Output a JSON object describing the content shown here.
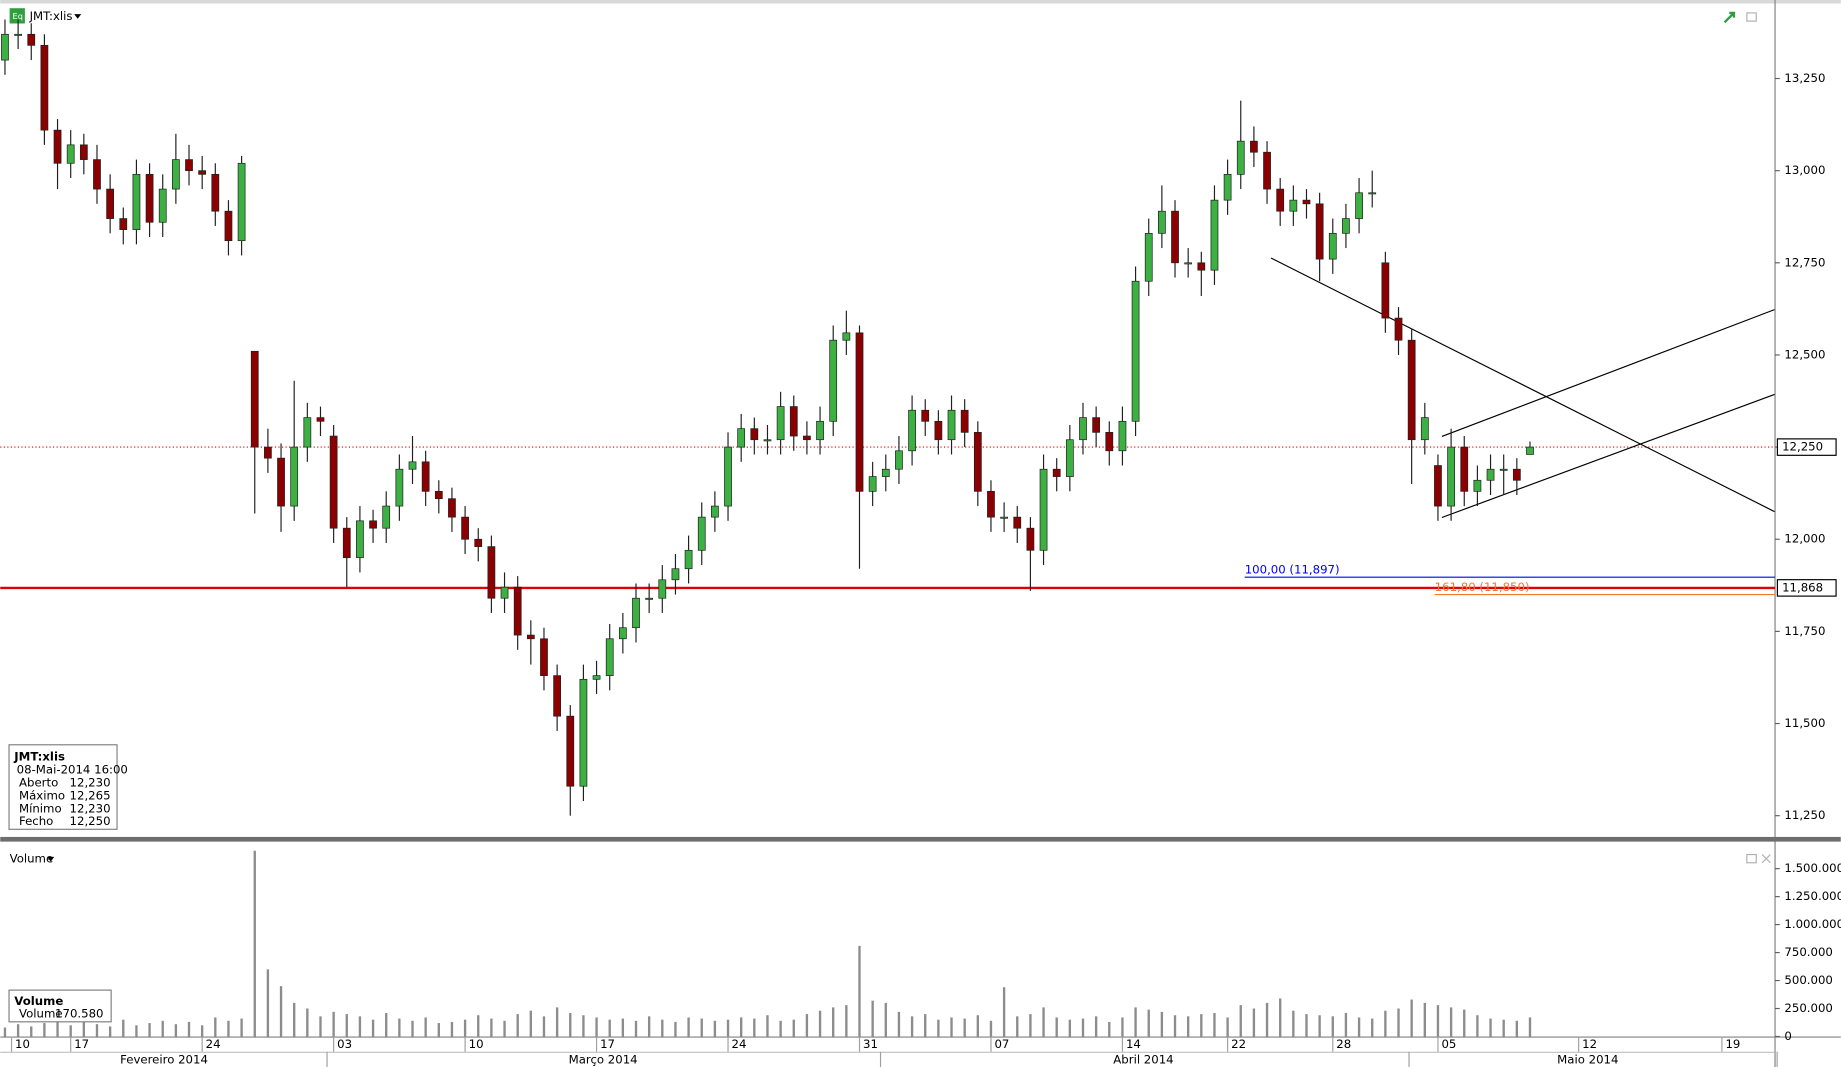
{
  "chart_data": [
    {
      "type": "candlestick",
      "title": "JMT:xlis",
      "x": [
        -5,
        -4,
        -3,
        -2,
        -1,
        0,
        1,
        2,
        3,
        4,
        5,
        6,
        7,
        8,
        9,
        10,
        11,
        12,
        13,
        14,
        15,
        16,
        17,
        18,
        19,
        20,
        21,
        22,
        23,
        24,
        25,
        26,
        27,
        28,
        29,
        30,
        31,
        32,
        33,
        34,
        35,
        36,
        37,
        38,
        39,
        40,
        41,
        42,
        43,
        44,
        45,
        46,
        47,
        48,
        49,
        50,
        51,
        52,
        53,
        54,
        55,
        56,
        57,
        58,
        59,
        60,
        61,
        62,
        63,
        64,
        65,
        66,
        67,
        68,
        69,
        70,
        71,
        72,
        73,
        74,
        75,
        76,
        77,
        78,
        79,
        80,
        81,
        82,
        83,
        84,
        85,
        86,
        87,
        88,
        89,
        90,
        91,
        92,
        93,
        94,
        95,
        96,
        97,
        98,
        99,
        100,
        101,
        102,
        103,
        104,
        105,
        106,
        107,
        108,
        109,
        110,
        111
      ],
      "open": [
        13.3,
        13.37,
        13.37,
        13.34,
        13.11,
        13.02,
        13.07,
        13.03,
        12.95,
        12.87,
        12.84,
        12.99,
        12.86,
        12.95,
        13.03,
        13.0,
        12.99,
        12.89,
        12.81,
        12.51,
        12.25,
        12.22,
        12.09,
        12.25,
        12.33,
        12.28,
        12.03,
        11.95,
        12.05,
        12.03,
        12.09,
        12.19,
        12.21,
        12.13,
        12.11,
        12.06,
        12.0,
        11.98,
        11.84,
        11.87,
        11.74,
        11.73,
        11.63,
        11.52,
        11.33,
        11.62,
        11.63,
        11.73,
        11.76,
        11.84,
        11.84,
        11.89,
        11.92,
        11.97,
        12.06,
        12.09,
        12.25,
        12.3,
        12.27,
        12.27,
        12.36,
        12.28,
        12.27,
        12.32,
        12.54,
        12.56,
        12.13,
        12.17,
        12.19,
        12.24,
        12.35,
        12.32,
        12.27,
        12.35,
        12.29,
        12.13,
        12.06,
        12.06,
        12.03,
        11.97,
        12.19,
        12.17,
        12.27,
        12.33,
        12.29,
        12.24,
        12.32,
        12.7,
        12.83,
        12.89,
        12.75,
        12.75,
        12.73,
        12.92,
        12.99,
        13.08,
        13.05,
        12.95,
        12.89,
        12.92,
        12.91,
        12.76,
        12.83,
        12.87,
        12.94,
        12.75,
        12.6,
        12.54,
        12.27,
        12.2,
        12.09,
        12.25,
        12.13,
        12.16,
        12.19,
        12.19,
        12.23
      ],
      "high": [
        13.41,
        13.41,
        13.4,
        13.37,
        13.14,
        13.11,
        13.1,
        13.07,
        12.99,
        12.9,
        13.03,
        13.02,
        12.99,
        13.1,
        13.07,
        13.04,
        13.02,
        12.92,
        13.04,
        12.51,
        12.3,
        12.26,
        12.43,
        12.37,
        12.36,
        12.31,
        12.06,
        12.09,
        12.08,
        12.13,
        12.23,
        12.28,
        12.24,
        12.16,
        12.14,
        12.09,
        12.03,
        12.01,
        11.91,
        11.9,
        11.78,
        11.76,
        11.66,
        11.55,
        11.66,
        11.67,
        11.77,
        11.8,
        11.88,
        11.88,
        11.93,
        11.96,
        12.01,
        12.1,
        12.13,
        12.29,
        12.34,
        12.33,
        12.31,
        12.4,
        12.39,
        12.32,
        12.36,
        12.58,
        12.62,
        12.58,
        12.21,
        12.23,
        12.28,
        12.39,
        12.38,
        12.35,
        12.39,
        12.38,
        12.32,
        12.16,
        12.1,
        12.09,
        12.06,
        12.23,
        12.22,
        12.31,
        12.37,
        12.36,
        12.32,
        12.36,
        12.74,
        12.87,
        12.96,
        12.92,
        12.79,
        12.78,
        12.96,
        13.03,
        13.19,
        13.12,
        13.08,
        12.98,
        12.96,
        12.95,
        12.94,
        12.87,
        12.91,
        12.98,
        13.0,
        12.78,
        12.63,
        12.57,
        12.37,
        12.23,
        12.3,
        12.28,
        12.2,
        12.23,
        12.23,
        12.22,
        12.265
      ],
      "low": [
        13.26,
        13.33,
        13.3,
        13.07,
        12.95,
        12.98,
        12.99,
        12.91,
        12.83,
        12.8,
        12.8,
        12.82,
        12.82,
        12.91,
        12.96,
        12.95,
        12.85,
        12.77,
        12.77,
        12.07,
        12.18,
        12.02,
        12.05,
        12.21,
        12.28,
        11.99,
        11.87,
        11.91,
        11.99,
        11.99,
        12.05,
        12.15,
        12.09,
        12.07,
        12.02,
        11.96,
        11.94,
        11.8,
        11.8,
        11.7,
        11.66,
        11.59,
        11.48,
        11.25,
        11.29,
        11.58,
        11.59,
        11.69,
        11.72,
        11.8,
        11.8,
        11.85,
        11.88,
        11.93,
        12.02,
        12.05,
        12.21,
        12.23,
        12.23,
        12.23,
        12.24,
        12.23,
        12.23,
        12.28,
        12.5,
        11.92,
        12.09,
        12.13,
        12.15,
        12.2,
        12.28,
        12.23,
        12.23,
        12.25,
        12.09,
        12.02,
        12.02,
        11.99,
        11.86,
        11.93,
        12.13,
        12.13,
        12.23,
        12.25,
        12.2,
        12.2,
        12.28,
        12.66,
        12.79,
        12.71,
        12.71,
        12.66,
        12.69,
        12.88,
        12.95,
        13.01,
        12.91,
        12.85,
        12.85,
        12.87,
        12.7,
        12.72,
        12.79,
        12.83,
        12.9,
        12.56,
        12.5,
        12.15,
        12.23,
        12.05,
        12.05,
        12.09,
        12.09,
        12.12,
        12.12,
        12.12,
        12.23
      ],
      "close": [
        13.37,
        13.37,
        13.34,
        13.11,
        13.02,
        13.07,
        13.03,
        12.95,
        12.87,
        12.84,
        12.99,
        12.86,
        12.95,
        13.03,
        13.0,
        12.99,
        12.89,
        12.81,
        13.02,
        12.25,
        12.22,
        12.09,
        12.25,
        12.33,
        12.32,
        12.03,
        11.95,
        12.05,
        12.03,
        12.09,
        12.19,
        12.21,
        12.13,
        12.11,
        12.06,
        12.0,
        11.98,
        11.84,
        11.87,
        11.74,
        11.73,
        11.63,
        11.52,
        11.33,
        11.62,
        11.63,
        11.73,
        11.76,
        11.84,
        11.84,
        11.89,
        11.92,
        11.97,
        12.06,
        12.09,
        12.25,
        12.3,
        12.27,
        12.27,
        12.36,
        12.28,
        12.27,
        12.32,
        12.54,
        12.56,
        12.13,
        12.17,
        12.19,
        12.24,
        12.35,
        12.32,
        12.27,
        12.35,
        12.29,
        12.13,
        12.06,
        12.06,
        12.03,
        11.97,
        12.19,
        12.17,
        12.27,
        12.33,
        12.29,
        12.24,
        12.32,
        12.7,
        12.83,
        12.89,
        12.75,
        12.75,
        12.73,
        12.92,
        12.99,
        13.08,
        13.05,
        12.95,
        12.89,
        12.92,
        12.91,
        12.76,
        12.83,
        12.87,
        12.94,
        12.94,
        12.6,
        12.54,
        12.27,
        12.33,
        12.09,
        12.25,
        12.13,
        12.16,
        12.19,
        12.19,
        12.16,
        12.25
      ],
      "up_color": "#3cb043",
      "down_color": "#8b0000",
      "xlim": [
        -5.36,
        129.64
      ],
      "xticks": [
        {
          "value": -4.5,
          "label": "10"
        },
        {
          "value": 0,
          "label": "17"
        },
        {
          "value": 10,
          "label": "24"
        },
        {
          "value": 20,
          "label": "03"
        },
        {
          "value": 30,
          "label": "10"
        },
        {
          "value": 40,
          "label": "17"
        },
        {
          "value": 50,
          "label": "24"
        },
        {
          "value": 60,
          "label": "31"
        },
        {
          "value": 70,
          "label": "07"
        },
        {
          "value": 80,
          "label": "14"
        },
        {
          "value": 88,
          "label": "22"
        },
        {
          "value": 96,
          "label": "28"
        },
        {
          "value": 104,
          "label": "05"
        },
        {
          "value": 114.7,
          "label": "12"
        },
        {
          "value": 125.6,
          "label": "19"
        }
      ],
      "month_ticks": [
        {
          "value": 7.1,
          "label": "Fevereiro 2014"
        },
        {
          "value": 40.5,
          "label": "Março 2014"
        },
        {
          "value": 81.6,
          "label": "Abril 2014"
        },
        {
          "value": 115.4,
          "label": "Maio 2014"
        }
      ],
      "month_bounds": [
        19.5,
        61.6,
        101.8,
        129.8
      ],
      "ylim": [
        11.186,
        13.463
      ],
      "yticks": [
        {
          "value": 11.25,
          "label": "11,250"
        },
        {
          "value": 11.5,
          "label": "11,500"
        },
        {
          "value": 11.75,
          "label": "11,750"
        },
        {
          "value": 12.0,
          "label": "12,000"
        },
        {
          "value": 12.25,
          "label": "12,250"
        },
        {
          "value": 12.5,
          "label": "12,500"
        },
        {
          "value": 12.75,
          "label": "12,750"
        },
        {
          "value": 13.0,
          "label": "13,000"
        },
        {
          "value": 13.25,
          "label": "13,250"
        }
      ],
      "last_price": {
        "value": 12.25,
        "label": "12,250",
        "color": "#e00000"
      },
      "hlines": [
        {
          "value": 11.868,
          "label": "11,868",
          "color": "#e00000"
        }
      ],
      "fib_levels": [
        {
          "value": 11.897,
          "label": "100,00 (11,897)",
          "color": "#0000ff",
          "start": 89.3
        },
        {
          "value": 11.85,
          "label": "161,80 (11,850)",
          "color": "#f07830",
          "start": 103.75
        }
      ],
      "trendlines": [
        {
          "points": [
            [
              91.3,
              12.763
            ],
            [
              129.6,
              12.075
            ]
          ],
          "color": "#000000"
        },
        {
          "points": [
            [
              104.3,
              12.279
            ],
            [
              129.6,
              12.623
            ]
          ],
          "color": "#000000"
        },
        {
          "points": [
            [
              104.3,
              12.059
            ],
            [
              129.6,
              12.393
            ]
          ],
          "color": "#000000"
        }
      ]
    },
    {
      "type": "bar",
      "title": "Volume",
      "color": "#8c8c8c",
      "values": [
        80000,
        110000,
        90000,
        120000,
        140000,
        100000,
        130000,
        110000,
        90000,
        150000,
        100000,
        120000,
        140000,
        110000,
        130000,
        100000,
        170000,
        140000,
        160000,
        1660000,
        600000,
        450000,
        300000,
        250000,
        180000,
        220000,
        200000,
        180000,
        150000,
        210000,
        160000,
        140000,
        170000,
        120000,
        130000,
        150000,
        190000,
        160000,
        140000,
        200000,
        230000,
        180000,
        260000,
        210000,
        190000,
        170000,
        150000,
        160000,
        140000,
        180000,
        150000,
        130000,
        170000,
        160000,
        140000,
        150000,
        170000,
        160000,
        190000,
        140000,
        150000,
        200000,
        230000,
        260000,
        280000,
        810000,
        320000,
        300000,
        220000,
        180000,
        200000,
        150000,
        170000,
        160000,
        190000,
        140000,
        440000,
        180000,
        200000,
        260000,
        170000,
        150000,
        160000,
        180000,
        130000,
        170000,
        260000,
        240000,
        220000,
        190000,
        180000,
        200000,
        210000,
        170000,
        280000,
        250000,
        300000,
        340000,
        230000,
        200000,
        190000,
        180000,
        210000,
        170000,
        160000,
        230000,
        250000,
        330000,
        300000,
        280000,
        260000,
        240000,
        190000,
        160000,
        150000,
        140000,
        170580
      ],
      "ylim": [
        0,
        1710000
      ],
      "yticks": [
        0,
        {
          "value": 250000,
          "label": "250.000"
        },
        {
          "value": 500000,
          "label": "500.000"
        },
        {
          "value": 750000,
          "label": "750.000"
        },
        {
          "value": 1000000,
          "label": "1.000.000"
        },
        {
          "value": 1250000,
          "label": "1.250.000"
        },
        {
          "value": 1500000,
          "label": "1.500.000"
        }
      ]
    }
  ],
  "info_box": {
    "title": "JMT:xlis",
    "datetime": "08-Mai-2014 16:00",
    "rows": [
      {
        "label": "Aberto",
        "value": "12,230"
      },
      {
        "label": "Máximo",
        "value": "12,265"
      },
      {
        "label": "Mínimo",
        "value": "12,230"
      },
      {
        "label": "Fecho",
        "value": "12,250"
      }
    ]
  },
  "volume_box": {
    "title": "Volume",
    "rows": [
      {
        "label": "Volume",
        "value": "170.580"
      }
    ]
  }
}
